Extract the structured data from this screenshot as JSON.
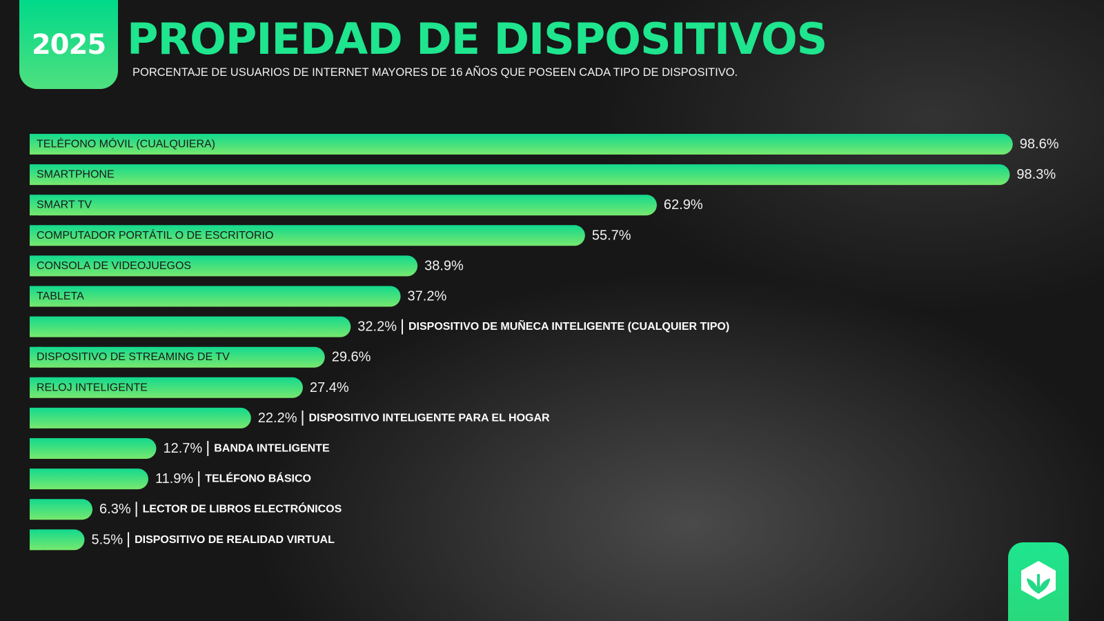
{
  "header": {
    "year": "2025",
    "title": "PROPIEDAD DE DISPOSITIVOS",
    "subtitle": "PORCENTAJE DE USUARIOS DE INTERNET MAYORES DE 16 AÑOS QUE POSEEN CADA TIPO DE DISPOSITIVO."
  },
  "colors": {
    "accent": "#1ee58e",
    "bar_start": "#12d98e",
    "bar_end": "#78e86e",
    "background": "#171717"
  },
  "logo": {
    "icon": "box-leaf-icon"
  },
  "chart_data": {
    "type": "bar",
    "orientation": "horizontal",
    "title": "PROPIEDAD DE DISPOSITIVOS",
    "categories": [
      "TELÉFONO MÓVIL (CUALQUIERA)",
      "SMARTPHONE",
      "SMART TV",
      "COMPUTADOR PORTÁTIL O DE ESCRITORIO",
      "CONSOLA DE VIDEOJUEGOS",
      "TABLETA",
      "DISPOSITIVO DE MUÑECA INTELIGENTE (CUALQUIER TIPO)",
      "DISPOSITIVO DE STREAMING DE TV",
      "RELOJ INTELIGENTE",
      "DISPOSITIVO INTELIGENTE PARA EL HOGAR",
      "BANDA INTELIGENTE",
      "TELÉFONO BÁSICO",
      "LECTOR DE LIBROS ELECTRÓNICOS",
      "DISPOSITIVO DE REALIDAD VIRTUAL"
    ],
    "values": [
      98.6,
      98.3,
      62.9,
      55.7,
      38.9,
      37.2,
      32.2,
      29.6,
      27.4,
      22.2,
      12.7,
      11.9,
      6.3,
      5.5
    ],
    "value_labels": [
      "98.6%",
      "98.3%",
      "62.9%",
      "55.7%",
      "38.9%",
      "37.2%",
      "32.2%",
      "29.6%",
      "27.4%",
      "22.2%",
      "12.7%",
      "11.9%",
      "6.3%",
      "5.5%"
    ],
    "label_inside": [
      true,
      true,
      true,
      true,
      true,
      true,
      false,
      true,
      true,
      false,
      false,
      false,
      false,
      false
    ],
    "unit": "%",
    "xlim": [
      0,
      100
    ],
    "grid": false,
    "legend": "none"
  }
}
